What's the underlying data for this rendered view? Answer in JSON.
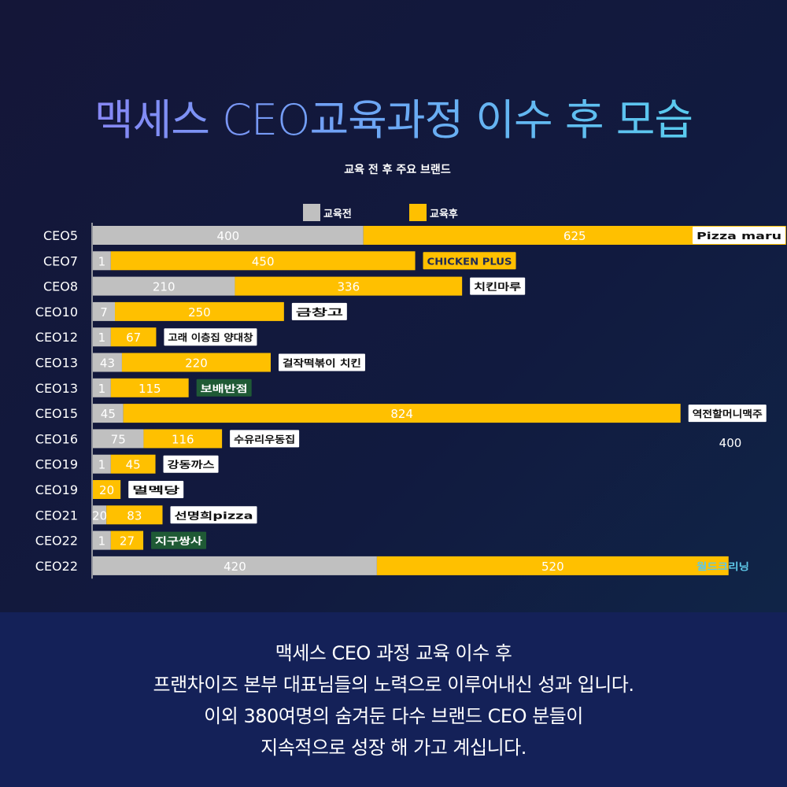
{
  "headline": "맥세스 CEO교육과정 이수 후 모습",
  "colors": {
    "before": "#c0c0c0",
    "after": "#ffc000",
    "axis": "#bdbdbd",
    "label": "#ffffff",
    "footer_bg": "#142158"
  },
  "chart_data": {
    "type": "bar",
    "orientation": "horizontal",
    "stacked": true,
    "title": "교육 전 후 주요 브랜드",
    "legend": {
      "position": "top",
      "entries": [
        "교육전",
        "교육후"
      ]
    },
    "categories": [
      "CEO5",
      "CEO7",
      "CEO8",
      "CEO10",
      "CEO12",
      "CEO13",
      "CEO13",
      "CEO15",
      "CEO16",
      "CEO19",
      "CEO19",
      "CEO21",
      "CEO22",
      "CEO22"
    ],
    "series": [
      {
        "name": "교육전",
        "values": [
          400,
          1,
          210,
          7,
          1,
          43,
          1,
          45,
          75,
          1,
          null,
          20,
          1,
          420
        ]
      },
      {
        "name": "교육후",
        "values": [
          625,
          450,
          336,
          250,
          67,
          220,
          115,
          824,
          116,
          45,
          20,
          83,
          27,
          520
        ]
      }
    ],
    "brands": [
      "Pizza maru",
      "CHICKEN PLUS",
      "치킨마루",
      "금창고",
      "고래 이층집 양대창",
      "걸작떡볶이 치킨",
      "보배반점",
      "역전할머니맥주",
      "수유리우동집",
      "강동까스",
      "멀멕당",
      "선명희pizza",
      "지구쌍사",
      "월드크리닝"
    ],
    "annotations": [
      "400"
    ],
    "grid": false
  },
  "footer": {
    "lines": [
      "맥세스 CEO 과정 교육 이수 후",
      "프랜차이즈 본부 대표님들의 노력으로 이루어내신 성과 입니다.",
      "이외 380여명의 숨겨둔 다수 브랜드 CEO 분들이",
      "지속적으로 성장 해 가고 계십니다."
    ]
  }
}
